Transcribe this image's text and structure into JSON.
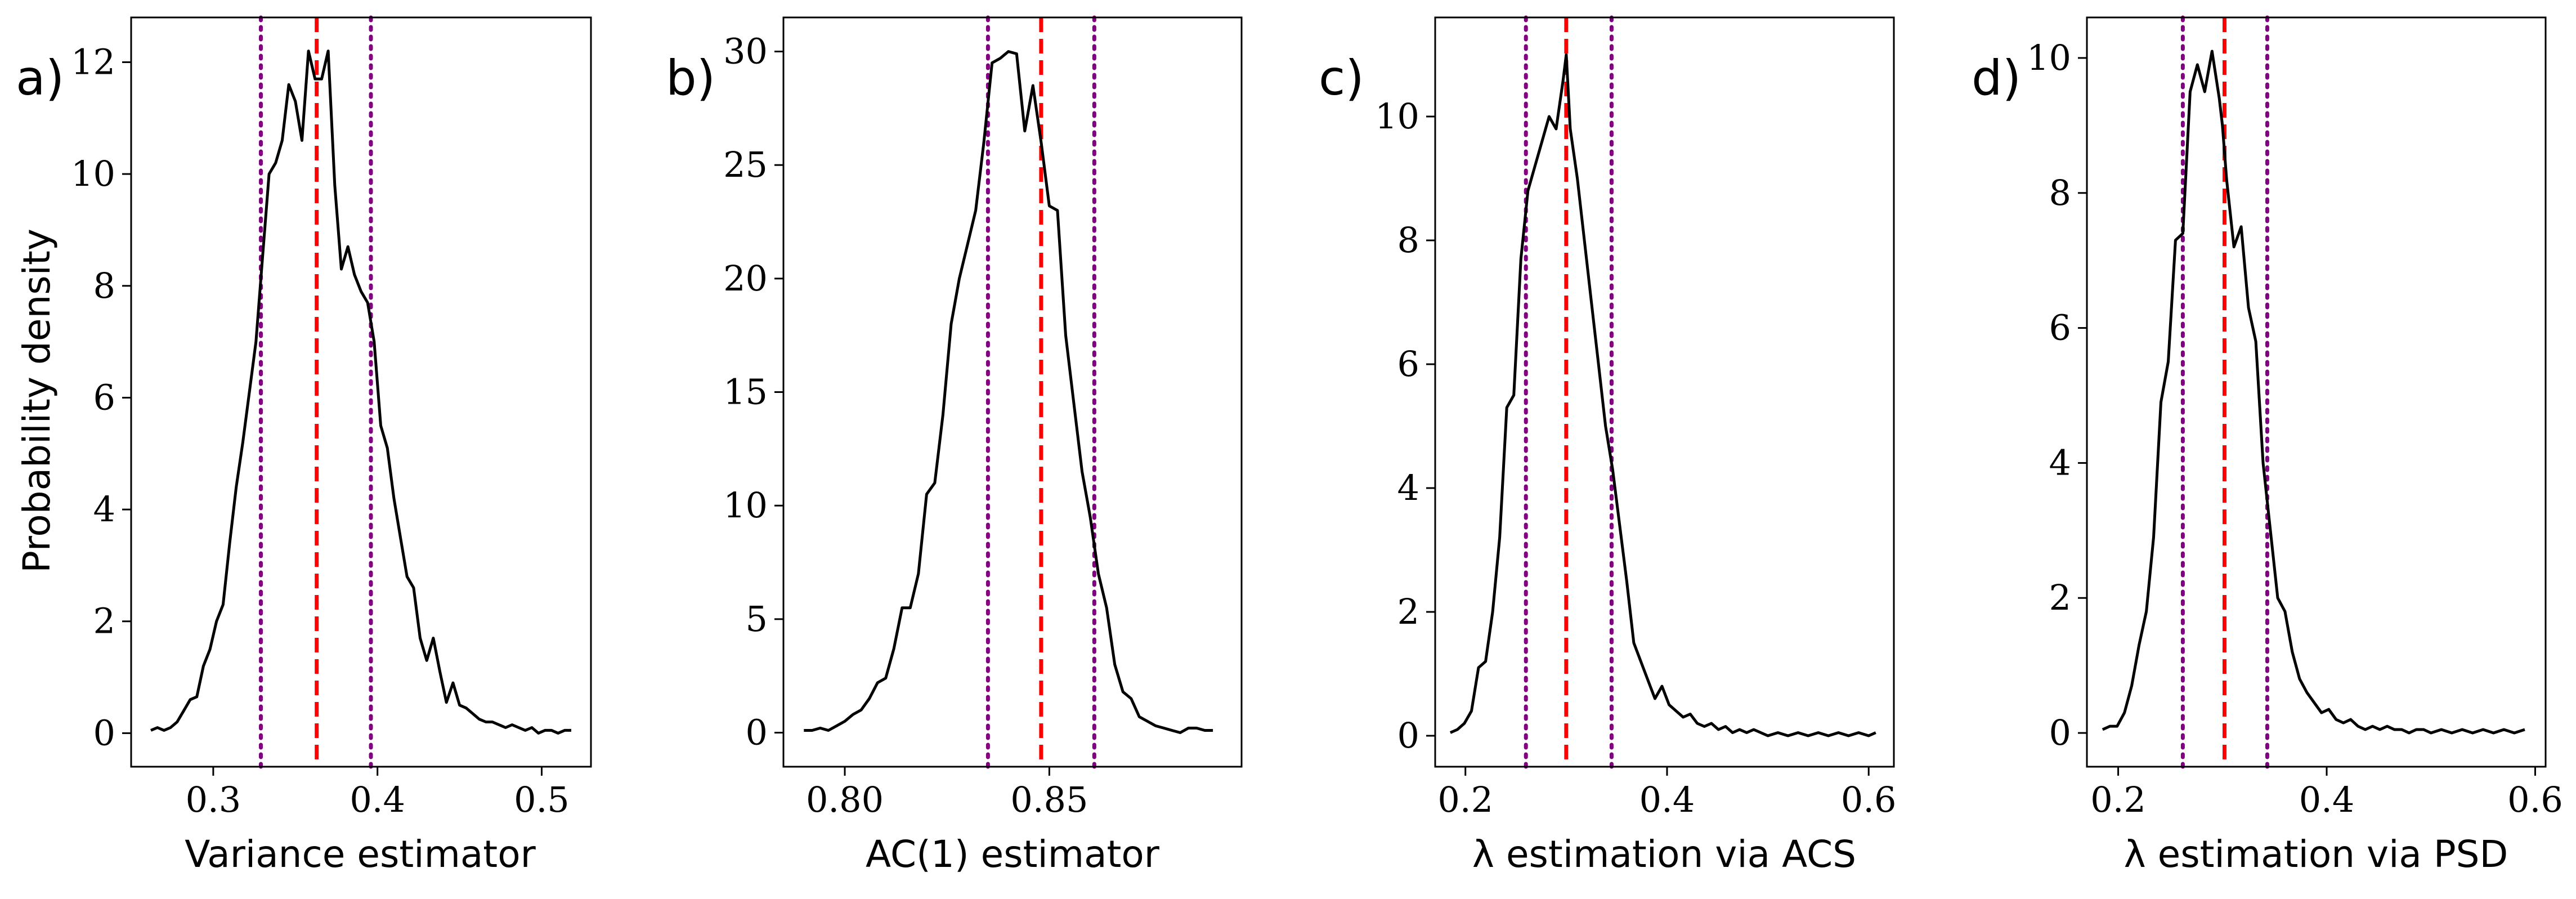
{
  "chart_data": [
    {
      "type": "line",
      "panel_label": "a)",
      "xlabel": "Variance estimator",
      "ylabel": "Probability density",
      "xlim": [
        0.25,
        0.53
      ],
      "ylim": [
        -0.6,
        12.8
      ],
      "xticks": [
        0.3,
        0.4,
        0.5
      ],
      "xtick_labels": [
        "0.3",
        "0.4",
        "0.5"
      ],
      "yticks": [
        0,
        2,
        4,
        6,
        8,
        10,
        12
      ],
      "ytick_labels": [
        "0",
        "2",
        "4",
        "6",
        "8",
        "10",
        "12"
      ],
      "grid": false,
      "series": [
        {
          "color": "#000000",
          "x": [
            0.262,
            0.266,
            0.27,
            0.274,
            0.278,
            0.282,
            0.286,
            0.29,
            0.294,
            0.298,
            0.302,
            0.306,
            0.31,
            0.314,
            0.318,
            0.322,
            0.326,
            0.33,
            0.334,
            0.338,
            0.342,
            0.346,
            0.35,
            0.354,
            0.358,
            0.362,
            0.366,
            0.37,
            0.374,
            0.378,
            0.382,
            0.386,
            0.39,
            0.394,
            0.398,
            0.402,
            0.406,
            0.41,
            0.414,
            0.418,
            0.422,
            0.426,
            0.43,
            0.434,
            0.438,
            0.442,
            0.446,
            0.45,
            0.454,
            0.458,
            0.462,
            0.466,
            0.47,
            0.474,
            0.478,
            0.482,
            0.486,
            0.49,
            0.494,
            0.498,
            0.502,
            0.506,
            0.51,
            0.514,
            0.518
          ],
          "y": [
            0.05,
            0.1,
            0.05,
            0.1,
            0.2,
            0.4,
            0.6,
            0.65,
            1.2,
            1.5,
            2.0,
            2.3,
            3.4,
            4.4,
            5.2,
            6.1,
            7.0,
            8.5,
            10.0,
            10.2,
            10.6,
            11.6,
            11.3,
            10.6,
            12.2,
            11.7,
            11.7,
            12.2,
            9.8,
            8.3,
            8.7,
            8.2,
            7.9,
            7.7,
            7.0,
            5.5,
            5.1,
            4.2,
            3.5,
            2.8,
            2.6,
            1.7,
            1.3,
            1.7,
            1.1,
            0.55,
            0.9,
            0.5,
            0.45,
            0.35,
            0.25,
            0.2,
            0.2,
            0.15,
            0.1,
            0.15,
            0.1,
            0.05,
            0.1,
            0.0,
            0.05,
            0.05,
            0.0,
            0.05,
            0.05
          ]
        }
      ],
      "vlines": [
        {
          "x": 0.329,
          "style": "dotted",
          "color": "#800080"
        },
        {
          "x": 0.363,
          "style": "dashed",
          "color": "#ff0000"
        },
        {
          "x": 0.396,
          "style": "dotted",
          "color": "#800080"
        }
      ]
    },
    {
      "type": "line",
      "panel_label": "b)",
      "xlabel": "AC(1) estimator",
      "ylabel": "",
      "xlim": [
        0.785,
        0.897
      ],
      "ylim": [
        -1.5,
        31.5
      ],
      "xticks": [
        0.8,
        0.85
      ],
      "xtick_labels": [
        "0.80",
        "0.85"
      ],
      "yticks": [
        0,
        5,
        10,
        15,
        20,
        25,
        30
      ],
      "ytick_labels": [
        "0",
        "5",
        "10",
        "15",
        "20",
        "25",
        "30"
      ],
      "grid": false,
      "series": [
        {
          "color": "#000000",
          "x": [
            0.79,
            0.792,
            0.794,
            0.796,
            0.798,
            0.8,
            0.802,
            0.804,
            0.806,
            0.808,
            0.81,
            0.812,
            0.814,
            0.816,
            0.818,
            0.82,
            0.822,
            0.824,
            0.826,
            0.828,
            0.83,
            0.832,
            0.834,
            0.836,
            0.838,
            0.84,
            0.842,
            0.844,
            0.846,
            0.848,
            0.85,
            0.852,
            0.854,
            0.856,
            0.858,
            0.86,
            0.862,
            0.864,
            0.866,
            0.868,
            0.87,
            0.872,
            0.874,
            0.876,
            0.878,
            0.88,
            0.882,
            0.884,
            0.886,
            0.888,
            0.89
          ],
          "y": [
            0.1,
            0.1,
            0.2,
            0.1,
            0.3,
            0.5,
            0.8,
            1.0,
            1.5,
            2.2,
            2.4,
            3.7,
            5.5,
            5.5,
            7.0,
            10.5,
            11.0,
            14.0,
            18.0,
            20.0,
            21.5,
            23.0,
            26.0,
            29.5,
            29.7,
            30.0,
            29.9,
            26.5,
            28.5,
            26.0,
            23.2,
            23.0,
            17.5,
            14.5,
            11.5,
            9.5,
            7.0,
            5.5,
            3.0,
            1.8,
            1.5,
            0.7,
            0.5,
            0.3,
            0.2,
            0.1,
            0.0,
            0.2,
            0.2,
            0.1,
            0.1
          ]
        }
      ],
      "vlines": [
        {
          "x": 0.835,
          "style": "dotted",
          "color": "#800080"
        },
        {
          "x": 0.848,
          "style": "dashed",
          "color": "#ff0000"
        },
        {
          "x": 0.861,
          "style": "dotted",
          "color": "#800080"
        }
      ]
    },
    {
      "type": "line",
      "panel_label": "c)",
      "xlabel": "λ estimation via ACS",
      "ylabel": "",
      "xlim": [
        0.17,
        0.625
      ],
      "ylim": [
        -0.5,
        11.6
      ],
      "xticks": [
        0.2,
        0.4,
        0.6
      ],
      "xtick_labels": [
        "0.2",
        "0.4",
        "0.6"
      ],
      "yticks": [
        0,
        2,
        4,
        6,
        8,
        10
      ],
      "ytick_labels": [
        "0",
        "2",
        "4",
        "6",
        "8",
        "10"
      ],
      "grid": false,
      "series": [
        {
          "color": "#000000",
          "x": [
            0.185,
            0.192,
            0.199,
            0.206,
            0.213,
            0.22,
            0.227,
            0.234,
            0.241,
            0.248,
            0.255,
            0.262,
            0.269,
            0.276,
            0.283,
            0.29,
            0.297,
            0.3,
            0.304,
            0.311,
            0.318,
            0.325,
            0.332,
            0.339,
            0.346,
            0.353,
            0.36,
            0.367,
            0.374,
            0.381,
            0.388,
            0.395,
            0.402,
            0.409,
            0.416,
            0.423,
            0.43,
            0.437,
            0.444,
            0.451,
            0.458,
            0.465,
            0.472,
            0.479,
            0.486,
            0.493,
            0.5,
            0.51,
            0.52,
            0.53,
            0.54,
            0.55,
            0.56,
            0.57,
            0.58,
            0.59,
            0.6,
            0.607
          ],
          "y": [
            0.05,
            0.1,
            0.2,
            0.4,
            1.1,
            1.2,
            2.0,
            3.2,
            5.3,
            5.5,
            7.7,
            8.8,
            9.2,
            9.6,
            10.0,
            9.8,
            10.6,
            11.0,
            9.8,
            9.0,
            8.0,
            7.0,
            6.0,
            5.0,
            4.3,
            3.4,
            2.5,
            1.5,
            1.2,
            0.9,
            0.6,
            0.8,
            0.5,
            0.4,
            0.3,
            0.35,
            0.2,
            0.15,
            0.2,
            0.1,
            0.15,
            0.05,
            0.1,
            0.05,
            0.1,
            0.05,
            0.0,
            0.05,
            0.0,
            0.05,
            0.0,
            0.05,
            0.0,
            0.05,
            0.0,
            0.05,
            0.0,
            0.05
          ]
        }
      ],
      "vlines": [
        {
          "x": 0.26,
          "style": "dotted",
          "color": "#800080"
        },
        {
          "x": 0.3,
          "style": "dashed",
          "color": "#ff0000"
        },
        {
          "x": 0.345,
          "style": "dotted",
          "color": "#800080"
        }
      ]
    },
    {
      "type": "line",
      "panel_label": "d)",
      "xlabel": "λ estimation via PSD",
      "ylabel": "",
      "xlim": [
        0.17,
        0.61
      ],
      "ylim": [
        -0.5,
        10.6
      ],
      "xticks": [
        0.2,
        0.4,
        0.6
      ],
      "xtick_labels": [
        "0.2",
        "0.4",
        "0.6"
      ],
      "yticks": [
        0,
        2,
        4,
        6,
        8,
        10
      ],
      "ytick_labels": [
        "0",
        "2",
        "4",
        "6",
        "8",
        "10"
      ],
      "grid": false,
      "series": [
        {
          "color": "#000000",
          "x": [
            0.185,
            0.192,
            0.199,
            0.206,
            0.213,
            0.22,
            0.227,
            0.234,
            0.241,
            0.248,
            0.255,
            0.262,
            0.269,
            0.276,
            0.283,
            0.29,
            0.297,
            0.3,
            0.304,
            0.311,
            0.318,
            0.325,
            0.332,
            0.339,
            0.346,
            0.353,
            0.36,
            0.367,
            0.374,
            0.381,
            0.388,
            0.395,
            0.402,
            0.409,
            0.416,
            0.423,
            0.43,
            0.437,
            0.444,
            0.451,
            0.458,
            0.465,
            0.472,
            0.479,
            0.486,
            0.493,
            0.5,
            0.51,
            0.52,
            0.53,
            0.54,
            0.55,
            0.56,
            0.57,
            0.58,
            0.59
          ],
          "y": [
            0.05,
            0.1,
            0.1,
            0.3,
            0.7,
            1.3,
            1.8,
            2.9,
            4.9,
            5.5,
            7.3,
            7.4,
            9.5,
            9.9,
            9.5,
            10.1,
            9.4,
            9.0,
            8.2,
            7.2,
            7.5,
            6.3,
            5.8,
            4.0,
            3.0,
            2.0,
            1.8,
            1.2,
            0.8,
            0.6,
            0.45,
            0.3,
            0.35,
            0.2,
            0.15,
            0.2,
            0.1,
            0.05,
            0.1,
            0.05,
            0.1,
            0.05,
            0.05,
            0.0,
            0.05,
            0.05,
            0.0,
            0.05,
            0.0,
            0.05,
            0.0,
            0.05,
            0.0,
            0.05,
            0.0,
            0.05
          ]
        }
      ],
      "vlines": [
        {
          "x": 0.262,
          "style": "dotted",
          "color": "#800080"
        },
        {
          "x": 0.302,
          "style": "dashed",
          "color": "#ff0000"
        },
        {
          "x": 0.343,
          "style": "dotted",
          "color": "#800080"
        }
      ]
    }
  ]
}
